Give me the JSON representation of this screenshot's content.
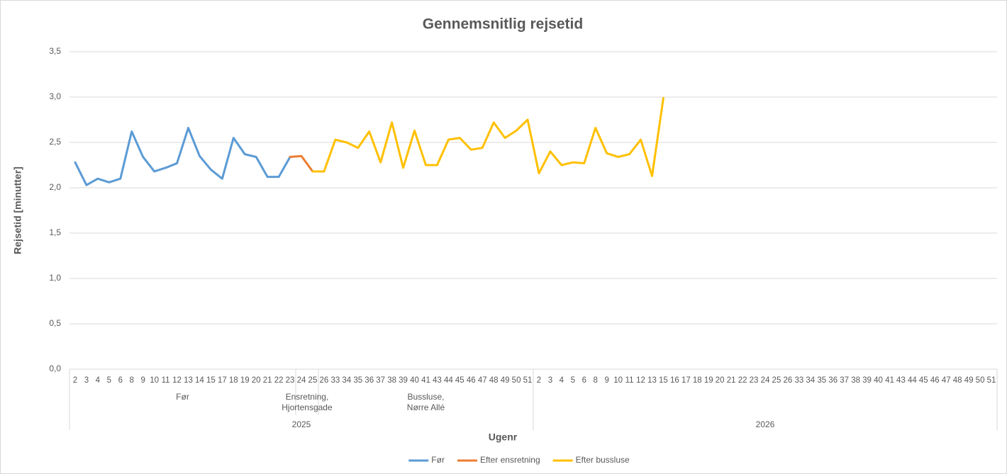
{
  "chart_data": {
    "type": "line",
    "title": "Gennemsnitlig rejsetid",
    "x_label": "Ugenr",
    "y_label": "Rejsetid [minutter]",
    "category_groups": [
      {
        "label": "2025",
        "groups": [
          {
            "label": "Før",
            "categories": [
              "2",
              "3",
              "4",
              "5",
              "6",
              "8",
              "9",
              "10",
              "11",
              "12",
              "13",
              "14",
              "15",
              "17",
              "18",
              "19",
              "20",
              "21",
              "22",
              "23"
            ]
          },
          {
            "label": "Ensretning, Hjortensgade",
            "categories": [
              "24",
              "25"
            ]
          },
          {
            "label": "Bussluse, Nørre Allé",
            "categories": [
              "26",
              "33",
              "34",
              "35",
              "36",
              "37",
              "38",
              "39",
              "40",
              "41",
              "43",
              "44",
              "45",
              "46",
              "47",
              "48",
              "49",
              "50",
              "51"
            ]
          }
        ]
      },
      {
        "label": "2026",
        "groups": [
          {
            "label": null,
            "categories": [
              "2",
              "3",
              "4",
              "5",
              "6",
              "8",
              "9",
              "10",
              "11",
              "12",
              "13",
              "15",
              "16",
              "17",
              "18",
              "19",
              "20",
              "21",
              "22",
              "23",
              "24",
              "25",
              "26",
              "33",
              "34",
              "35",
              "36",
              "37",
              "38",
              "39",
              "40",
              "41",
              "43",
              "44",
              "45",
              "46",
              "47",
              "48",
              "49",
              "50",
              "51"
            ]
          }
        ]
      }
    ],
    "ylim": [
      0,
      3.5
    ],
    "yticks": [
      {
        "value": 0,
        "label": "0,0"
      },
      {
        "value": 0.5,
        "label": "0,5"
      },
      {
        "value": 1,
        "label": "1,0"
      },
      {
        "value": 1.5,
        "label": "1,5"
      },
      {
        "value": 2,
        "label": "2,0"
      },
      {
        "value": 2.5,
        "label": "2,5"
      },
      {
        "value": 3,
        "label": "3,0"
      },
      {
        "value": 3.5,
        "label": "3,5"
      }
    ],
    "grid": true,
    "legend": "bottom",
    "series": [
      {
        "name": "Før",
        "color": "#5b9bd5",
        "values": [
          2.28,
          2.03,
          2.1,
          2.06,
          2.1,
          2.62,
          2.34,
          2.18,
          2.22,
          2.27,
          2.66,
          2.35,
          2.2,
          2.1,
          2.55,
          2.37,
          2.34,
          2.12,
          2.12,
          2.34,
          null,
          null,
          null,
          null,
          null,
          null,
          null,
          null,
          null,
          null,
          null,
          null,
          null,
          null,
          null,
          null,
          null,
          null,
          null,
          null,
          null,
          null,
          null,
          null,
          null,
          null,
          null,
          null,
          null,
          null,
          null,
          null,
          null,
          null,
          null,
          null,
          null,
          null,
          null,
          null,
          null,
          null,
          null,
          null,
          null,
          null,
          null,
          null,
          null,
          null,
          null,
          null,
          null,
          null,
          null,
          null,
          null,
          null,
          null,
          null,
          null,
          null
        ]
      },
      {
        "name": "Efter ensretning",
        "color": "#ed7d31",
        "values": [
          null,
          null,
          null,
          null,
          null,
          null,
          null,
          null,
          null,
          null,
          null,
          null,
          null,
          null,
          null,
          null,
          null,
          null,
          null,
          2.34,
          2.35,
          2.18,
          null,
          null,
          null,
          null,
          null,
          null,
          null,
          null,
          null,
          null,
          null,
          null,
          null,
          null,
          null,
          null,
          null,
          null,
          null,
          null,
          null,
          null,
          null,
          null,
          null,
          null,
          null,
          null,
          null,
          null,
          null,
          null,
          null,
          null,
          null,
          null,
          null,
          null,
          null,
          null,
          null,
          null,
          null,
          null,
          null,
          null,
          null,
          null,
          null,
          null,
          null,
          null,
          null,
          null,
          null,
          null,
          null,
          null,
          null,
          null
        ]
      },
      {
        "name": "Efter bussluse",
        "color": "#ffc000",
        "values": [
          null,
          null,
          null,
          null,
          null,
          null,
          null,
          null,
          null,
          null,
          null,
          null,
          null,
          null,
          null,
          null,
          null,
          null,
          null,
          null,
          null,
          2.18,
          2.18,
          2.53,
          2.5,
          2.44,
          2.62,
          2.28,
          2.72,
          2.22,
          2.63,
          2.25,
          2.25,
          2.53,
          2.55,
          2.42,
          2.44,
          2.72,
          2.55,
          2.63,
          2.75,
          2.16,
          2.4,
          2.25,
          2.28,
          2.27,
          2.66,
          2.38,
          2.34,
          2.37,
          2.53,
          2.13,
          2.99,
          null,
          null,
          null,
          null,
          null,
          null,
          null,
          null,
          null,
          null,
          null,
          null,
          null,
          null,
          null,
          null,
          null,
          null,
          null,
          null,
          null,
          null,
          null,
          null,
          null,
          null,
          null,
          null,
          null
        ]
      }
    ]
  }
}
